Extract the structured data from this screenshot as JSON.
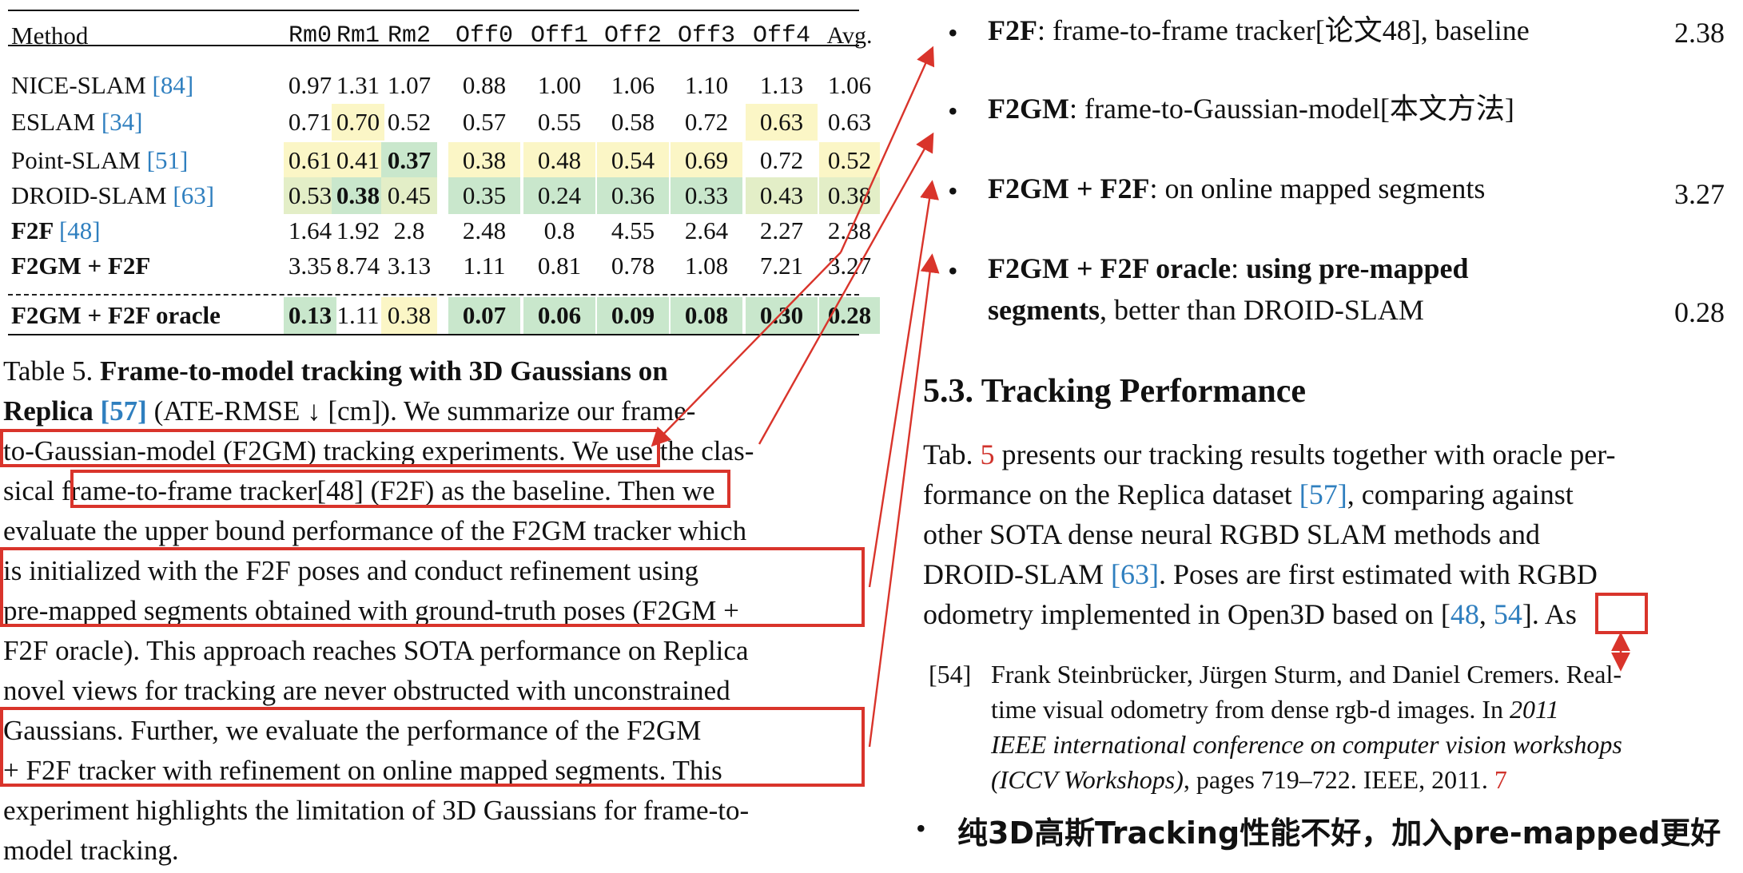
{
  "table": {
    "headers": [
      "Method",
      "Rm0",
      "Rm1",
      "Rm2",
      "Off0",
      "Off1",
      "Off2",
      "Off3",
      "Off4",
      "Avg."
    ],
    "rows": [
      {
        "method": "NICE-SLAM ",
        "cite": "[84]",
        "values": [
          "0.97",
          "1.31",
          "1.07",
          "0.88",
          "1.00",
          "1.06",
          "1.10",
          "1.13",
          "1.06"
        ]
      },
      {
        "method": "ESLAM ",
        "cite": "[34]",
        "values": [
          "0.71",
          "0.70",
          "0.52",
          "0.57",
          "0.55",
          "0.58",
          "0.72",
          "0.63",
          "0.63"
        ]
      },
      {
        "method": "Point-SLAM ",
        "cite": "[51]",
        "values": [
          "0.61",
          "0.41",
          "0.37",
          "0.38",
          "0.48",
          "0.54",
          "0.69",
          "0.72",
          "0.52"
        ]
      },
      {
        "method": "DROID-SLAM ",
        "cite": "[63]",
        "values": [
          "0.53",
          "0.38",
          "0.45",
          "0.35",
          "0.24",
          "0.36",
          "0.33",
          "0.43",
          "0.38"
        ]
      },
      {
        "method": "F2F ",
        "cite": "[48]",
        "values": [
          "1.64",
          "1.92",
          "2.8",
          "2.48",
          "0.8",
          "4.55",
          "2.64",
          "2.27",
          "2.38"
        ]
      },
      {
        "method": "F2GM + F2F",
        "cite": "",
        "values": [
          "3.35",
          "8.74",
          "3.13",
          "1.11",
          "0.81",
          "0.78",
          "1.08",
          "7.21",
          "3.27"
        ]
      },
      {
        "method": "F2GM + F2F oracle",
        "cite": "",
        "values": [
          "0.13",
          "1.11",
          "0.38",
          "0.07",
          "0.06",
          "0.09",
          "0.08",
          "0.30",
          "0.28"
        ]
      }
    ],
    "colors": {
      "yellow": "#fbf6c6",
      "light_green": "#e3eec7",
      "green": "#c9e7cc"
    }
  },
  "caption": {
    "lines": [
      [
        "Table 5.  ",
        "Frame-to-model tracking with 3D Gaussians on"
      ],
      [
        "Replica ",
        "[57]",
        " (ATE-RMSE ↓ [cm]).  We summarize our frame-"
      ],
      [
        "to-Gaussian-model (F2GM) tracking experiments. We use the clas-"
      ],
      [
        "sical frame-to-frame tracker[48] (F2F) as the baseline. Then we"
      ],
      [
        "evaluate the upper bound performance of the F2GM tracker which"
      ],
      [
        "is initialized with the F2F poses and conduct refinement using"
      ],
      [
        "pre-mapped segments obtained with ground-truth poses (F2GM +"
      ],
      [
        "F2F oracle). This approach reaches SOTA performance on Replica"
      ],
      [
        "novel views for tracking are never obstructed with unconstrained"
      ],
      [
        "Gaussians.  Further, we evaluate the performance of the F2GM"
      ],
      [
        "+ F2F tracker with refinement on online mapped segments. This"
      ],
      [
        "experiment highlights the limitation of 3D Gaussians for frame-to-"
      ],
      [
        "model tracking."
      ]
    ]
  },
  "bullets": [
    {
      "bold": "F2F",
      "text": ":  frame-to-frame tracker[论文48], baseline",
      "value": "2.38"
    },
    {
      "bold": "F2GM",
      "text": ":  frame-to-Gaussian-model[本文方法]",
      "value": ""
    },
    {
      "bold": "F2GM  + F2F",
      "text": ":  on online mapped segments",
      "value": "3.27"
    },
    {
      "bold": "F2GM  + F2F oracle",
      "text": ":  ",
      "bold2": "using pre-mapped",
      "line2_bold": "segments",
      "line2_text": ", better than DROID-SLAM",
      "value": "0.28"
    }
  ],
  "section": {
    "title": "5.3. Tracking Performance"
  },
  "paragraph": {
    "lines": [
      [
        "Tab. ",
        "5",
        " presents our tracking results together with oracle per-"
      ],
      [
        "formance on the Replica dataset ",
        "[57]",
        ", comparing against"
      ],
      [
        "other SOTA dense neural RGBD SLAM methods and"
      ],
      [
        "DROID-SLAM ",
        "[63]",
        ". Poses are first estimated with RGBD"
      ],
      [
        "odometry implemented in Open3D based on [",
        "48",
        ", ",
        "54",
        "].  As"
      ]
    ]
  },
  "reference": {
    "label": "[54]",
    "lines": [
      "Frank Steinbrücker, Jürgen Sturm, and Daniel Cremers.  Real-",
      "time visual odometry from dense rgb-d images.   In ",
      "IEEE international conference on computer vision workshops",
      "(ICCV Workshops)",
      ", pages 719–722. IEEE, 2011. ",
      "7"
    ],
    "year_italic": "2011"
  },
  "note": {
    "text": "纯3D高斯Tracking性能不好，加入pre-mapped更好"
  }
}
